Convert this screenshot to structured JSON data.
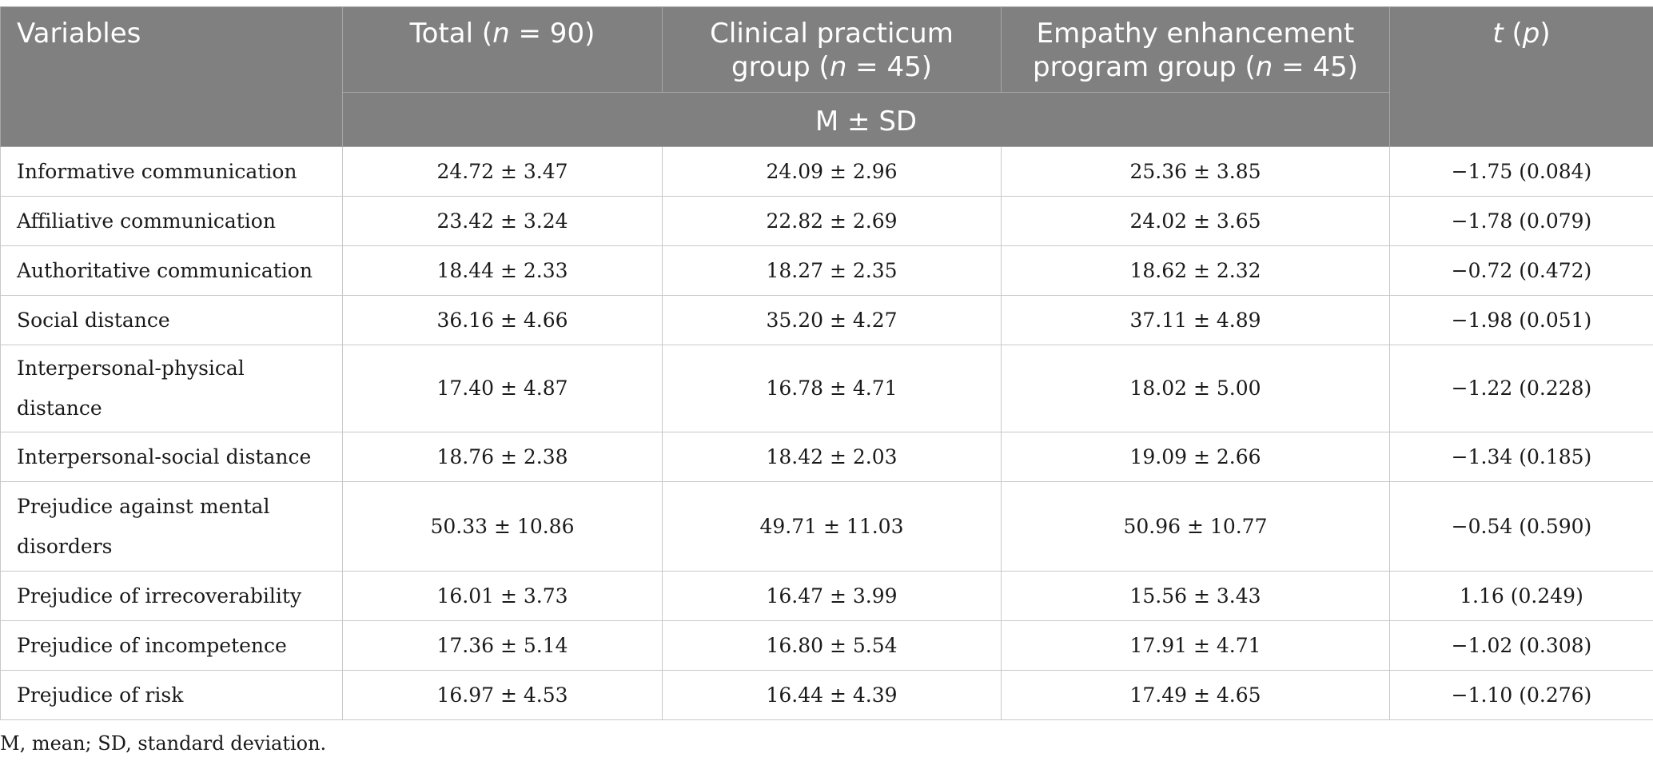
{
  "table": {
    "headers": {
      "variables": "Variables",
      "total_prefix": "Total (",
      "total_n": "n",
      "total_suffix": " = 90)",
      "clinical_line1": "Clinical practicum",
      "clinical_prefix": "group (",
      "clinical_n": "n",
      "clinical_suffix": " = 45)",
      "empathy_line1": "Empathy enhancement",
      "empathy_prefix": "program group (",
      "empathy_n": "n",
      "empathy_suffix": " = 45)",
      "t_label": "t",
      "p_prefix": " (",
      "p_label": "p",
      "p_suffix": ")",
      "msd": "M ± SD"
    },
    "rows": [
      {
        "variable": "Informative communication",
        "total": "24.72 ± 3.47",
        "clinical": "24.09 ± 2.96",
        "empathy": "25.36 ± 3.85",
        "tp": "−1.75 (0.084)"
      },
      {
        "variable": "Affiliative communication",
        "total": "23.42 ± 3.24",
        "clinical": "22.82 ± 2.69",
        "empathy": "24.02 ± 3.65",
        "tp": "−1.78 (0.079)"
      },
      {
        "variable": "Authoritative communication",
        "total": "18.44 ± 2.33",
        "clinical": "18.27 ± 2.35",
        "empathy": "18.62 ± 2.32",
        "tp": "−0.72 (0.472)"
      },
      {
        "variable": "Social distance",
        "total": "36.16 ± 4.66",
        "clinical": "35.20 ± 4.27",
        "empathy": "37.11 ± 4.89",
        "tp": "−1.98 (0.051)"
      },
      {
        "variable": "Interpersonal-physical distance",
        "total": "17.40 ± 4.87",
        "clinical": "16.78 ± 4.71",
        "empathy": "18.02 ± 5.00",
        "tp": "−1.22 (0.228)"
      },
      {
        "variable": "Interpersonal-social distance",
        "total": "18.76 ± 2.38",
        "clinical": "18.42 ± 2.03",
        "empathy": "19.09 ± 2.66",
        "tp": "−1.34 (0.185)"
      },
      {
        "variable_line1": "Prejudice against mental",
        "variable_line2": "disorders",
        "total": "50.33 ± 10.86",
        "clinical": "49.71 ± 11.03",
        "empathy": "50.96 ± 10.77",
        "tp": "−0.54 (0.590)"
      },
      {
        "variable": "Prejudice of irrecoverability",
        "total": "16.01 ± 3.73",
        "clinical": "16.47 ± 3.99",
        "empathy": "15.56 ± 3.43",
        "tp": "1.16 (0.249)"
      },
      {
        "variable": "Prejudice of incompetence",
        "total": "17.36 ± 5.14",
        "clinical": "16.80 ± 5.54",
        "empathy": "17.91 ± 4.71",
        "tp": "−1.02 (0.308)"
      },
      {
        "variable": "Prejudice of risk",
        "total": "16.97 ± 4.53",
        "clinical": "16.44 ± 4.39",
        "empathy": "17.49 ± 4.65",
        "tp": "−1.10 (0.276)"
      }
    ]
  },
  "footnote": "M, mean; SD, standard deviation."
}
